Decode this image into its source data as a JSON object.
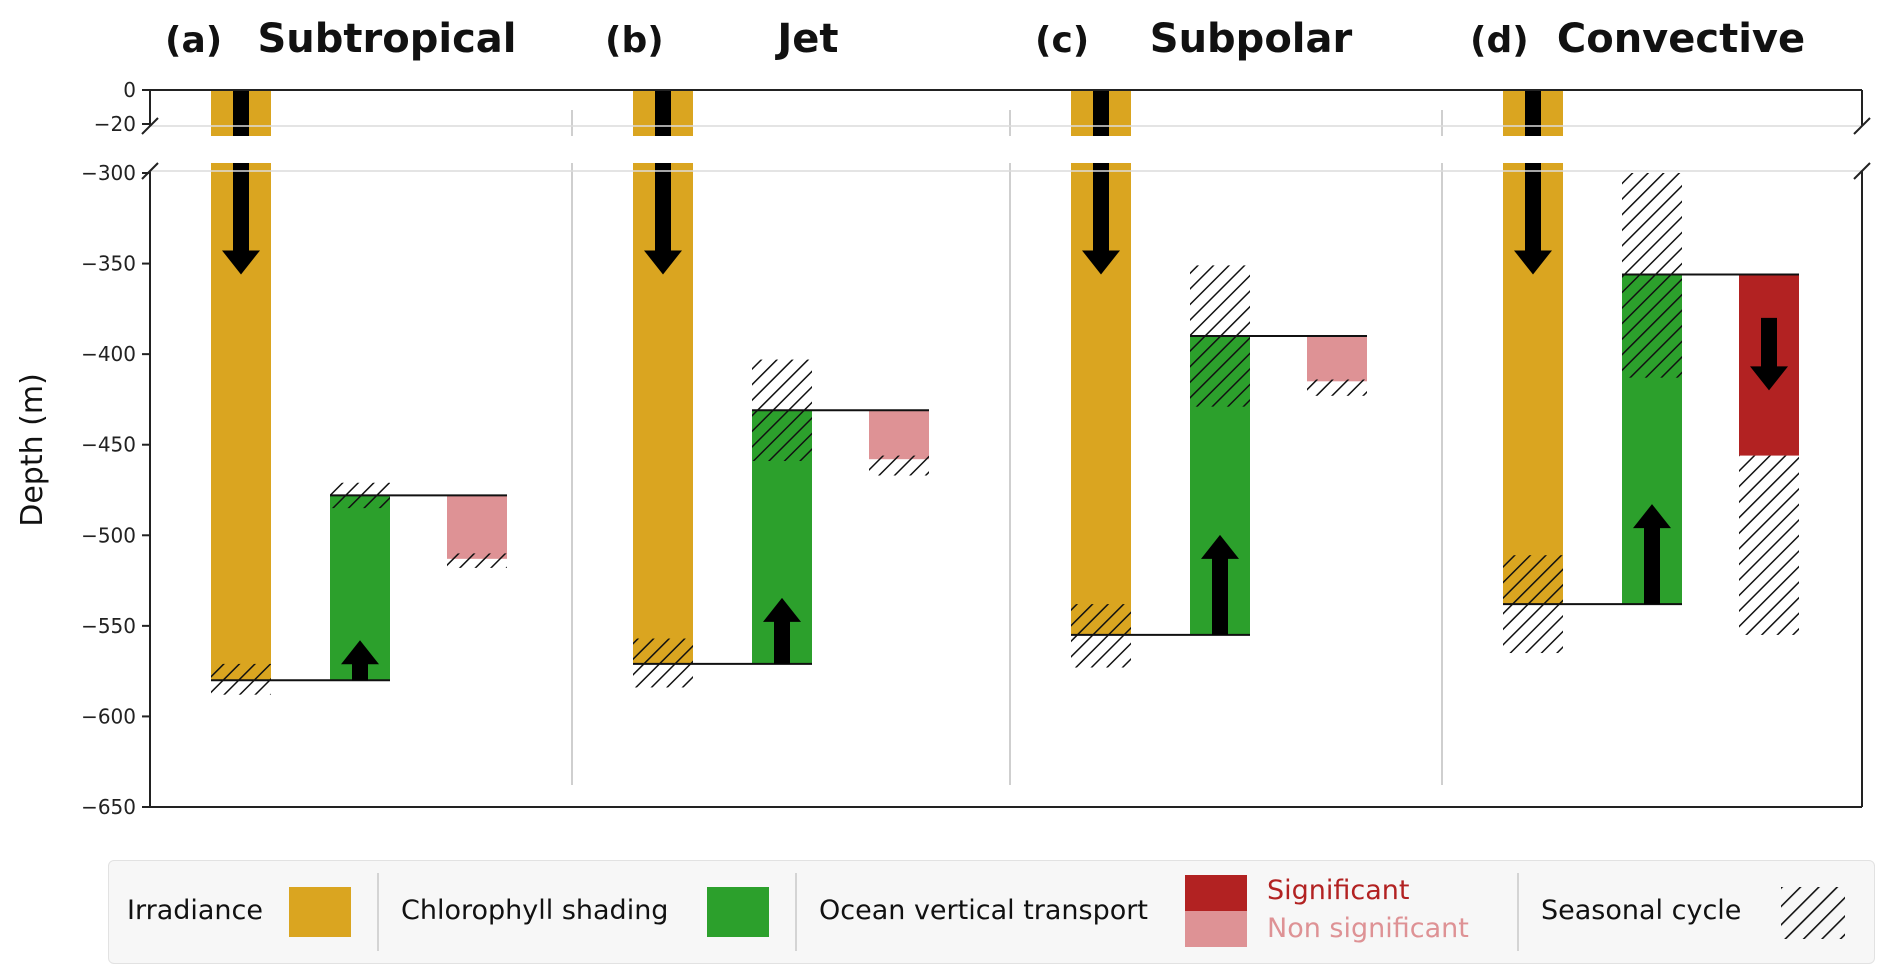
{
  "chart_data": {
    "type": "bar",
    "y_label": "Depth (m)",
    "y_axis": {
      "range": [
        -650,
        0
      ],
      "broken_segment": [
        -20,
        -300
      ],
      "ticks": [
        0,
        -20,
        -300,
        -350,
        -400,
        -450,
        -500,
        -550,
        -600,
        -650
      ],
      "tick_labels": [
        "0",
        "−20",
        "−300",
        "−350",
        "−400",
        "−450",
        "−500",
        "−550",
        "−600",
        "−650"
      ]
    },
    "grid": false,
    "panels": [
      {
        "letter": "(a)",
        "title": "Subtropical",
        "irradiance": {
          "top": 0,
          "bottom": -580,
          "arrow": "down",
          "seasonal_range": [
            -571,
            -588
          ]
        },
        "chlorophyll_shading": {
          "top": -478,
          "bottom": -580,
          "arrow": "up",
          "seasonal_range": [
            -471,
            -485
          ]
        },
        "ocean_vertical_transport": {
          "top": -478,
          "bottom": -513,
          "significant": false,
          "seasonal_range": [
            -510,
            -518
          ]
        }
      },
      {
        "letter": "(b)",
        "title": "Jet",
        "irradiance": {
          "top": 0,
          "bottom": -571,
          "arrow": "down",
          "seasonal_range": [
            -557,
            -584
          ]
        },
        "chlorophyll_shading": {
          "top": -431,
          "bottom": -571,
          "arrow": "up",
          "seasonal_range": [
            -403,
            -459
          ]
        },
        "ocean_vertical_transport": {
          "top": -431,
          "bottom": -458,
          "significant": false,
          "seasonal_range": [
            -456,
            -467
          ]
        }
      },
      {
        "letter": "(c)",
        "title": "Subpolar",
        "irradiance": {
          "top": 0,
          "bottom": -555,
          "arrow": "down",
          "seasonal_range": [
            -538,
            -573
          ]
        },
        "chlorophyll_shading": {
          "top": -390,
          "bottom": -555,
          "arrow": "up",
          "seasonal_range": [
            -351,
            -429
          ]
        },
        "ocean_vertical_transport": {
          "top": -390,
          "bottom": -415,
          "significant": false,
          "seasonal_range": [
            -414,
            -423
          ]
        }
      },
      {
        "letter": "(d)",
        "title": "Convective",
        "irradiance": {
          "top": 0,
          "bottom": -538,
          "arrow": "down",
          "seasonal_range": [
            -511,
            -565
          ]
        },
        "chlorophyll_shading": {
          "top": -356,
          "bottom": -538,
          "arrow": "up",
          "seasonal_range": [
            -300,
            -413
          ]
        },
        "ocean_vertical_transport": {
          "top": -356,
          "bottom": -456,
          "significant": true,
          "arrow": "down",
          "seasonal_range": [
            -456,
            -555
          ]
        }
      }
    ],
    "legend": {
      "placement": "bottom",
      "irradiance": "Irradiance",
      "chlorophyll": "Chlorophyll shading",
      "transport": "Ocean vertical transport",
      "significant": "Significant",
      "non_significant": "Non significant",
      "seasonal": "Seasonal cycle"
    },
    "colors": {
      "irradiance": "#DAA520",
      "chlorophyll": "#2CA02C",
      "significant": "#B22222",
      "non_significant": "#DE9295",
      "hatch": "#111111"
    }
  }
}
